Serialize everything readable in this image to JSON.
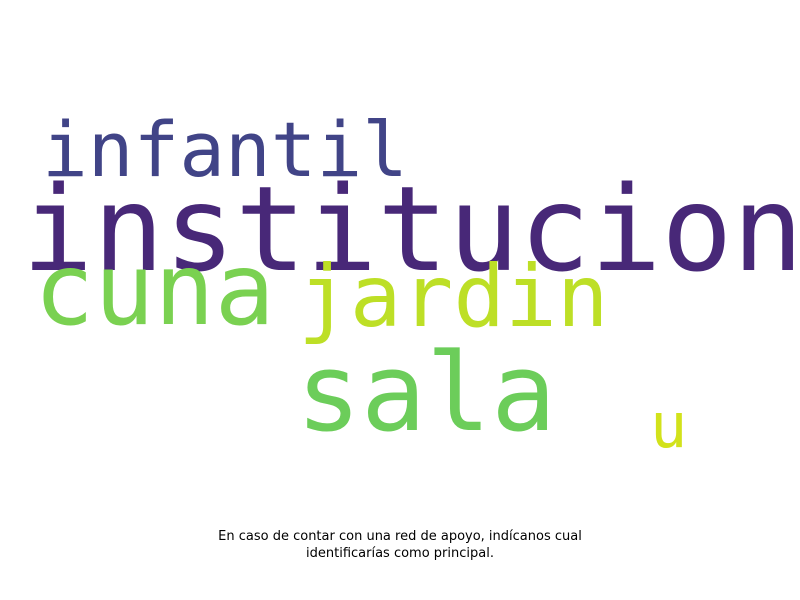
{
  "words": [
    {
      "text": "infantil",
      "color": "#414487"
    },
    {
      "text": "institucion",
      "color": "#482878"
    },
    {
      "text": "cuna",
      "color": "#7ad151"
    },
    {
      "text": "jardin",
      "color": "#bddf26"
    },
    {
      "text": "sala",
      "color": "#6ccd5a"
    },
    {
      "text": "u",
      "color": "#d2e21b"
    }
  ],
  "caption": {
    "line1": "En caso de contar con una red de apoyo, indícanos cual",
    "line2": "identificarías como principal."
  }
}
